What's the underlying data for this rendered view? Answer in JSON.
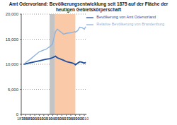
{
  "chart_data": {
    "type": "line",
    "title": "Amt Odervorland: Bevölkerungsentwicklung seit 1875 auf der Fläche der heutigen Gebietskörperschaft",
    "x": [
      1875,
      1890,
      1910,
      1925,
      1933,
      1939,
      1946,
      1950,
      1964,
      1971,
      1981,
      1985,
      1989,
      1990,
      1995,
      2000,
      2005,
      2010,
      2013
    ],
    "series": [
      {
        "name": "Bevölkerung von Amt Odervorland",
        "color": "#1f4e9c",
        "values": [
          10000,
          10300,
          10700,
          11000,
          11100,
          11300,
          11600,
          11300,
          10800,
          10500,
          10300,
          10200,
          10000,
          9900,
          10200,
          10500,
          10400,
          10200,
          10400
        ]
      },
      {
        "name": "Relative Bevölkerung von Brandenburg",
        "color": "#8fb3dc",
        "values": [
          10000,
          11000,
          12500,
          13000,
          13500,
          14000,
          16500,
          17000,
          16000,
          16200,
          16300,
          16400,
          16500,
          16400,
          16700,
          17400,
          17300,
          17000,
          17500
        ]
      }
    ],
    "xlim": [
      1870,
      2015
    ],
    "xticks": [
      1870,
      1880,
      1890,
      1900,
      1910,
      1920,
      1930,
      1940,
      1950,
      1960,
      1970,
      1980,
      1990,
      2000,
      2010
    ],
    "ylim": [
      0,
      20000
    ],
    "yticks": [
      0,
      {
        "value": 5000,
        "label": "5,000"
      },
      {
        "value": 10000,
        "label": "10,000"
      },
      {
        "value": 15000,
        "label": "15,000"
      },
      {
        "value": 20000,
        "label": "20,000"
      }
    ],
    "periods": [
      {
        "start": 1933,
        "end": 1945,
        "color": "#c4c4c4"
      },
      {
        "start": 1945,
        "end": 1990,
        "color": "#f9c9a8"
      }
    ],
    "grid": true
  }
}
